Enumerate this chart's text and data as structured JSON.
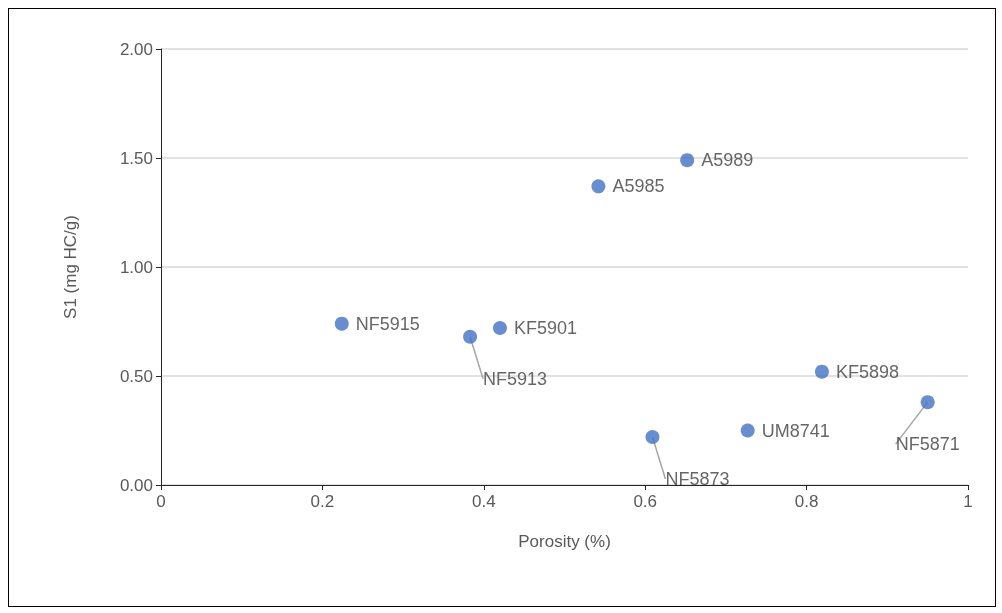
{
  "chart_data": {
    "type": "scatter",
    "xlabel": "Porosity (%)",
    "ylabel": "S1 (mg HC/g)",
    "x": [
      0.652,
      0.542,
      0.224,
      0.383,
      0.42,
      0.819,
      0.95,
      0.609,
      0.727
    ],
    "series": [
      {
        "color": "#4472c4",
        "values": [
          1.49,
          1.37,
          0.74,
          0.68,
          0.72,
          0.52,
          0.38,
          0.22,
          0.25
        ]
      }
    ],
    "annotations": [
      {
        "text": "A5989",
        "x": 0.652,
        "y": 1.49
      },
      {
        "text": "A5985",
        "x": 0.542,
        "y": 1.37
      },
      {
        "text": "NF5915",
        "x": 0.224,
        "y": 0.74
      },
      {
        "text": "NF5913",
        "x": 0.383,
        "y": 0.68
      },
      {
        "text": "KF5901",
        "x": 0.42,
        "y": 0.72
      },
      {
        "text": "KF5898",
        "x": 0.819,
        "y": 0.52
      },
      {
        "text": "NF5871",
        "x": 0.95,
        "y": 0.38
      },
      {
        "text": "NF5873",
        "x": 0.609,
        "y": 0.22
      },
      {
        "text": "UM8741",
        "x": 0.727,
        "y": 0.25
      }
    ],
    "xlim": [
      0,
      1
    ],
    "xticks": [
      0,
      0.2,
      0.4,
      0.6,
      0.8,
      1
    ],
    "ylim": [
      0,
      2
    ],
    "yticks": [
      {
        "value": 0,
        "label": "0.00"
      },
      {
        "value": 0.5,
        "label": "0.50"
      },
      {
        "value": 1,
        "label": "1.00"
      },
      {
        "value": 1.5,
        "label": "1.50"
      },
      {
        "value": 2,
        "label": "2.00"
      }
    ],
    "grid": "y",
    "marker": "circle"
  }
}
